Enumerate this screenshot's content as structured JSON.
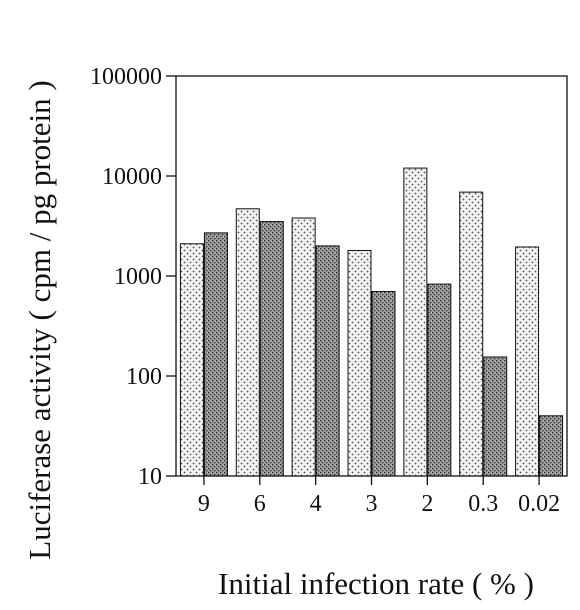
{
  "chart_data": {
    "type": "bar",
    "xlabel": "Initial infection rate ( % )",
    "ylabel": "Luciferase activity ( cpm / pg protein )",
    "yscale": "log",
    "ylim": [
      10,
      100000
    ],
    "yticks": [
      "10",
      "100",
      "1000",
      "10000",
      "100000"
    ],
    "categories": [
      "9",
      "6",
      "4",
      "3",
      "2",
      "0.3",
      "0.02"
    ],
    "series": [
      {
        "values": [
          2100,
          4700,
          3800,
          1800,
          12000,
          6900,
          1950
        ],
        "pattern": "light-dotted",
        "fill_color": "#e3e3e3"
      },
      {
        "values": [
          2700,
          3500,
          2000,
          700,
          830,
          155,
          40
        ],
        "pattern": "dark-stippled",
        "fill_color": "#8a8a8a"
      }
    ],
    "grid": false,
    "legend": "none"
  }
}
